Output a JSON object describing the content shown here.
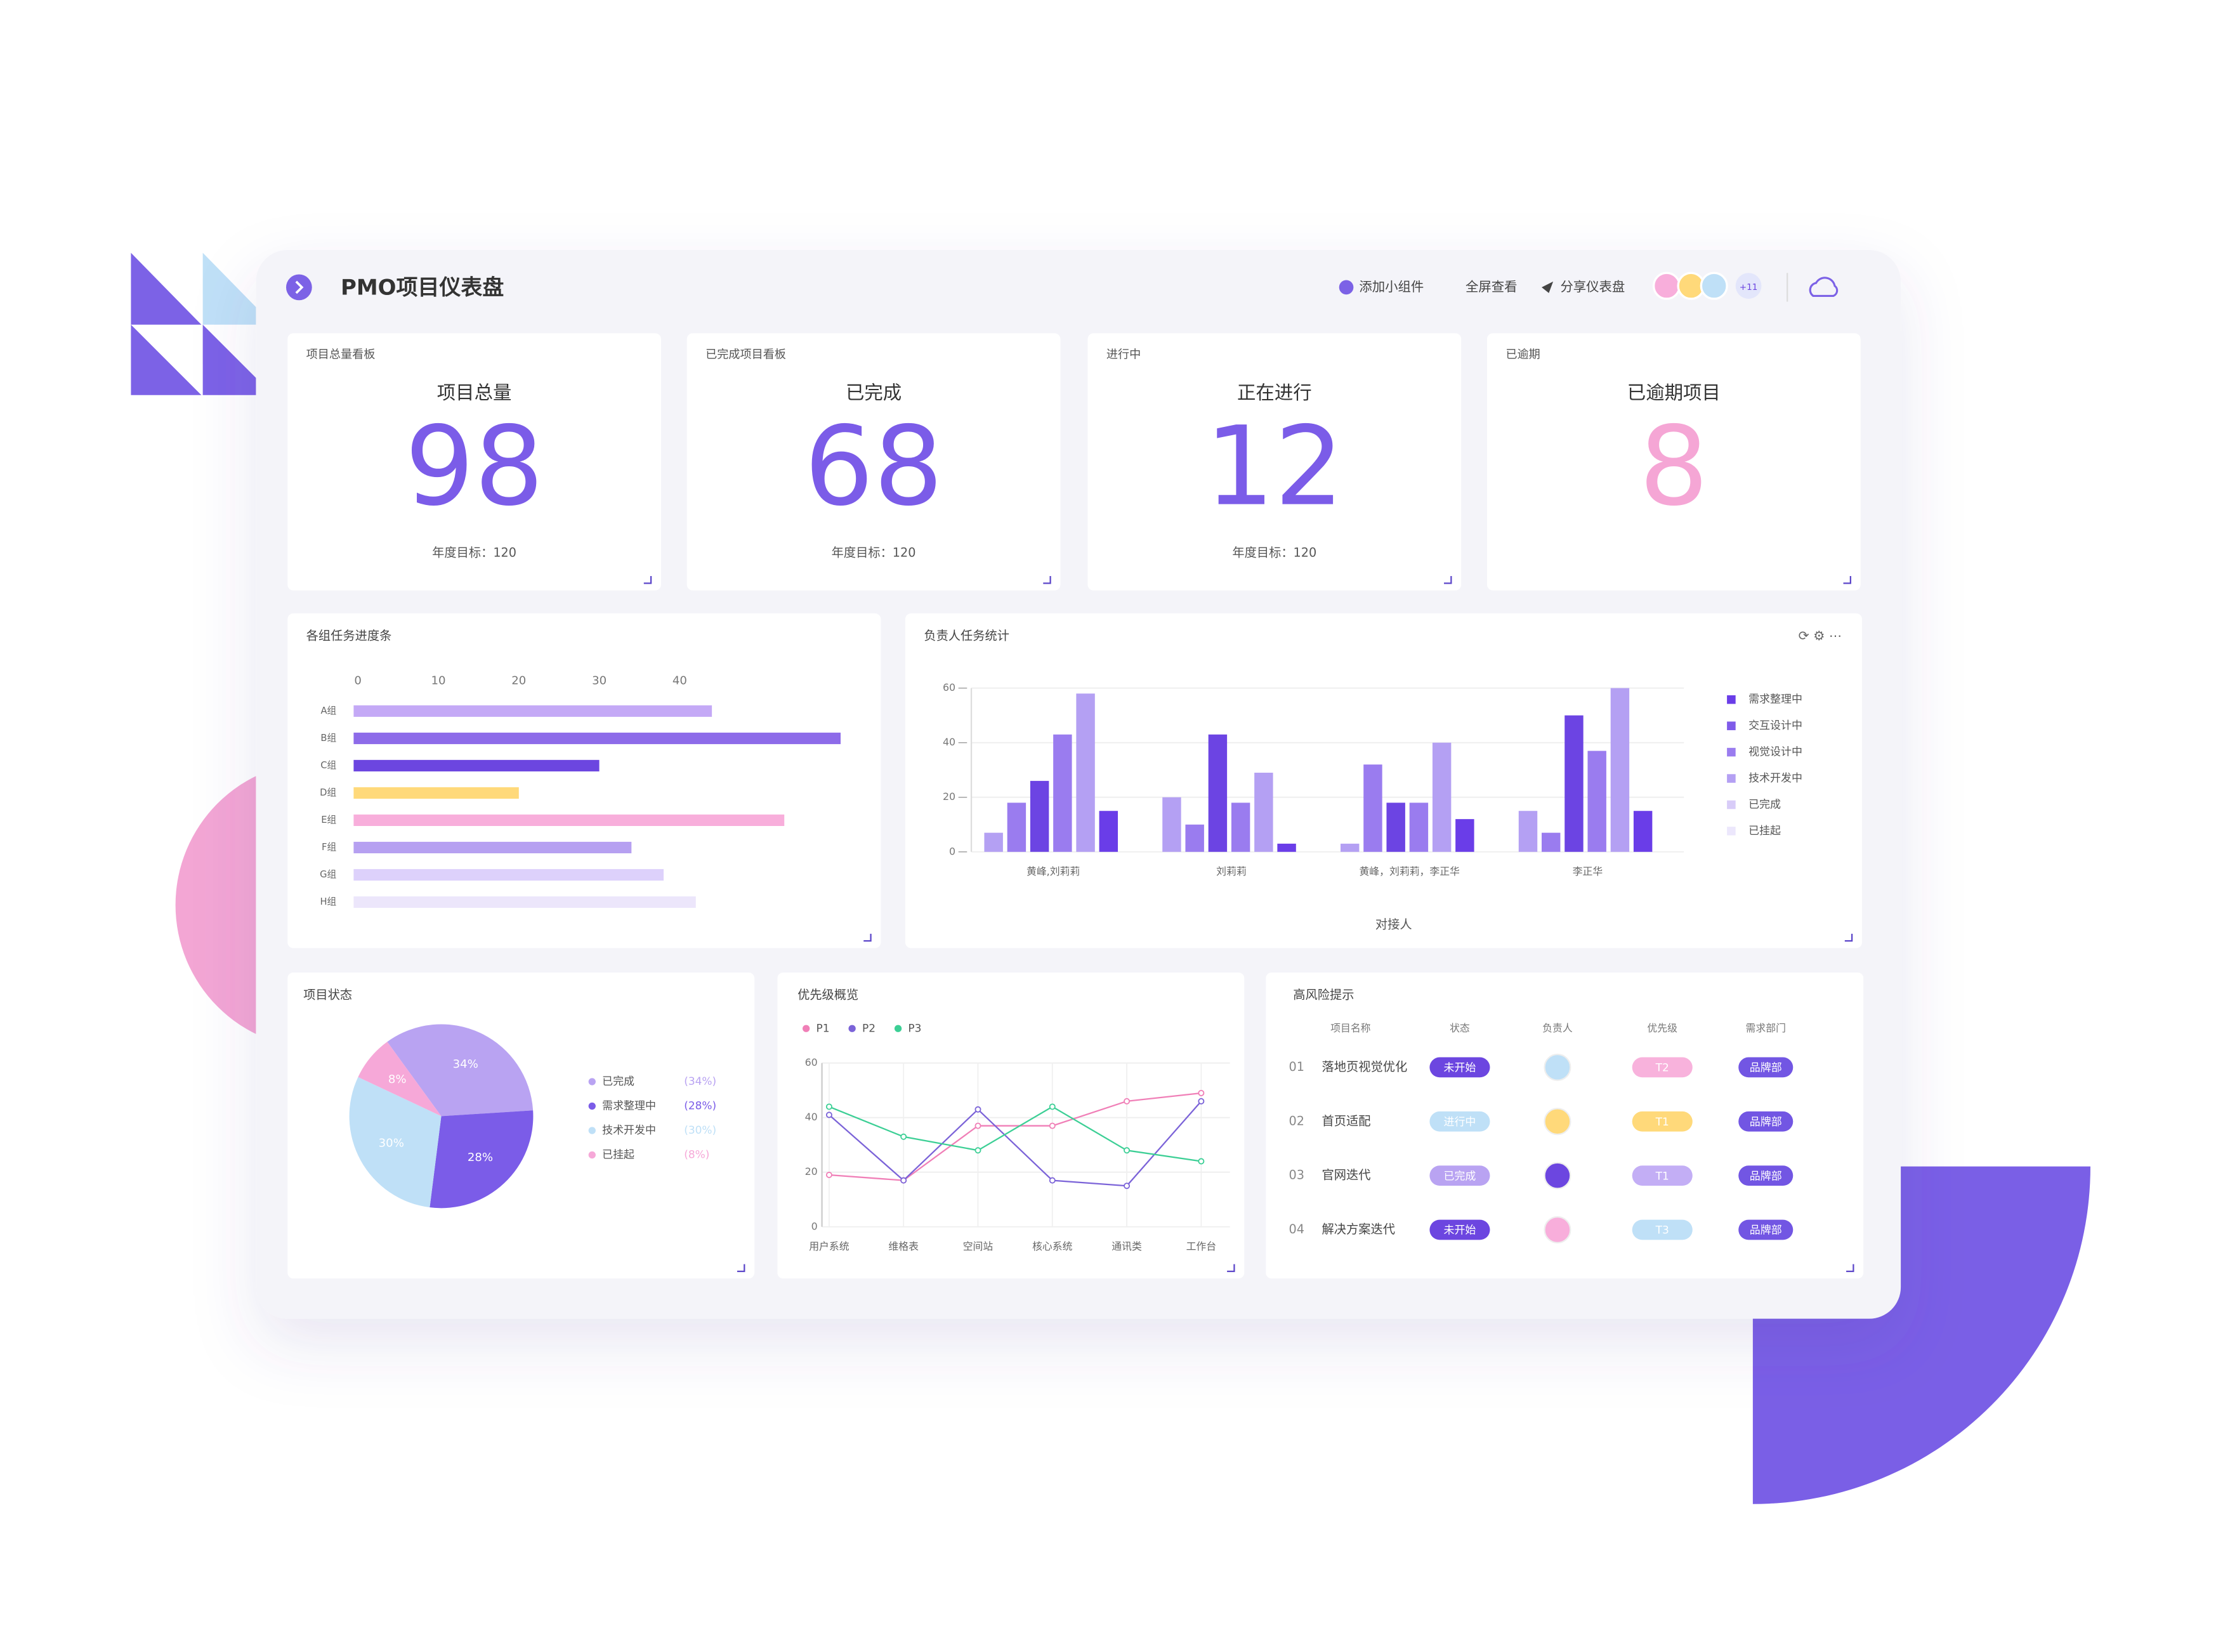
{
  "header": {
    "title": "PMO项目仪表盘",
    "actions": [
      "添加小组件",
      "全屏查看",
      "分享仪表盘"
    ],
    "member_count": "+11"
  },
  "kpis": [
    {
      "tag": "项目总量看板",
      "title": "项目总量",
      "value": "98",
      "target": "年度目标：120",
      "color": "#7b5ce8"
    },
    {
      "tag": "已完成项目看板",
      "title": "已完成",
      "value": "68",
      "target": "年度目标：120",
      "color": "#7b5ce8"
    },
    {
      "tag": "进行中",
      "title": "正在进行",
      "value": "12",
      "target": "年度目标：120",
      "color": "#7b5ce8"
    },
    {
      "tag": "已逾期",
      "title": "已逾期项目",
      "value": "8",
      "color": "#f5a6d5"
    }
  ],
  "chart_data": [
    {
      "type": "hbar",
      "title": "各组任务进度条",
      "categories": [
        "A组",
        "B组",
        "C组",
        "D组",
        "E组",
        "F组",
        "G组",
        "H组"
      ],
      "values": [
        44,
        60,
        30,
        20,
        53,
        34,
        38,
        42
      ],
      "colors": [
        "#c4a9f6",
        "#8d6be9",
        "#6c46e0",
        "#ffd97a",
        "#f8aedb",
        "#b6a0f1",
        "#ddd1fb",
        "#ece6fb"
      ],
      "xlim": [
        0,
        60
      ],
      "xticks": [
        0,
        10,
        20,
        30,
        40
      ]
    },
    {
      "type": "grouped_bar",
      "title": "负责人任务统计",
      "x_label": "对接人",
      "categories": [
        "黄峰,刘莉莉",
        "刘莉莉",
        "黄峰，刘莉莉，李正华",
        "李正华"
      ],
      "series": [
        {
          "name": "需求整理中",
          "color": "#b4a0f3",
          "values": [
            7,
            20,
            3,
            15
          ]
        },
        {
          "name": "交互设计中",
          "color": "#9a7cef",
          "values": [
            18,
            10,
            32,
            7
          ]
        },
        {
          "name": "视觉设计中",
          "color": "#6c44e3",
          "values": [
            26,
            43,
            18,
            50
          ]
        },
        {
          "name": "技术开发中",
          "color": "#9a7cef",
          "values": [
            43,
            18,
            18,
            37
          ]
        },
        {
          "name": "已完成",
          "color": "#b4a0f3",
          "values": [
            58,
            29,
            40,
            60
          ]
        },
        {
          "name": "已挂起",
          "color": "#6a3de8",
          "values": [
            15,
            3,
            12,
            15
          ]
        }
      ],
      "legend_colors": [
        "#6a3de8",
        "#7f5be9",
        "#9a7cef",
        "#b4a0f3",
        "#d8ccf8",
        "#ece7fc"
      ],
      "ylim": [
        0,
        60
      ],
      "yticks": [
        0,
        20,
        40,
        60
      ],
      "grid": true,
      "legend": "right"
    },
    {
      "type": "pie",
      "title": "项目状态",
      "categories": [
        "已完成",
        "需求整理中",
        "技术开发中",
        "已挂起"
      ],
      "values": [
        34,
        28,
        30,
        8
      ],
      "value_labels": [
        "34%",
        "28%",
        "30%",
        "8%"
      ],
      "legend_value_labels": [
        "(34%)",
        "(28%)",
        "(30%)",
        "(8%)"
      ],
      "colors": [
        "#b9a3f2",
        "#7b5ce8",
        "#bfe0f7",
        "#f6a8d8"
      ]
    },
    {
      "type": "line",
      "title": "优先级概览",
      "categories": [
        "用户系统",
        "维格表",
        "空间站",
        "核心系统",
        "通讯类",
        "工作台"
      ],
      "series": [
        {
          "name": "P1",
          "color": "#f07fb7",
          "values": [
            19,
            17,
            37,
            37,
            46,
            49
          ]
        },
        {
          "name": "P2",
          "color": "#7b63d8",
          "values": [
            41,
            17,
            43,
            17,
            15,
            46
          ]
        },
        {
          "name": "P3",
          "color": "#3ccf95",
          "values": [
            44,
            33,
            28,
            44,
            28,
            24
          ]
        }
      ],
      "ylim": [
        0,
        60
      ],
      "yticks": [
        0,
        20,
        40,
        60
      ],
      "grid": true,
      "legend": "top"
    }
  ],
  "table": {
    "title": "高风险提示",
    "headers": [
      "项目名称",
      "状态",
      "负责人",
      "优先级",
      "需求部门"
    ],
    "rows": [
      {
        "num": "01",
        "name": "落地页视觉优化",
        "status": "未开始",
        "status_color": "#6c46e0",
        "avatar_color": "#bfe0f7",
        "priority": "T2",
        "priority_color": "#f8b2dc",
        "dept": "品牌部"
      },
      {
        "num": "02",
        "name": "首页适配",
        "status": "进行中",
        "status_color": "#bfe0f7",
        "avatar_color": "#ffd97a",
        "priority": "T1",
        "priority_color": "#ffd97a",
        "dept": "品牌部"
      },
      {
        "num": "03",
        "name": "官网迭代",
        "status": "已完成",
        "status_color": "#b9a3f2",
        "avatar_color": "#6c46e0",
        "priority": "T1",
        "priority_color": "#c3aef5",
        "dept": "品牌部"
      },
      {
        "num": "04",
        "name": "解决方案迭代",
        "status": "未开始",
        "status_color": "#6c46e0",
        "avatar_color": "#f8aedb",
        "priority": "T3",
        "priority_color": "#bfe0f7",
        "dept": "品牌部"
      }
    ]
  }
}
